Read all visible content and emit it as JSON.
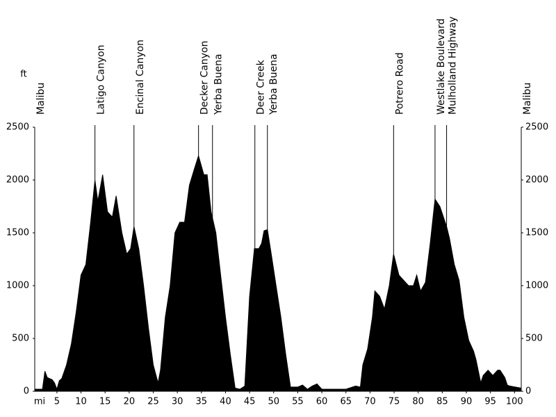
{
  "chart_data": {
    "type": "area",
    "color": "#000000",
    "y_label": "ft",
    "x_label": "mi",
    "xlim": [
      0.4,
      101.4
    ],
    "ylim": [
      0,
      2500
    ],
    "xticks": [
      5,
      10,
      15,
      20,
      25,
      30,
      35,
      40,
      45,
      50,
      55,
      60,
      65,
      70,
      75,
      80,
      85,
      90,
      95,
      100
    ],
    "yticks": [
      0,
      500,
      1000,
      1500,
      2000,
      2500
    ],
    "landmarks": [
      {
        "name": "Malibu",
        "x": 0.4,
        "line": false
      },
      {
        "name": "Latigo Canyon",
        "x": 12.9,
        "line": true
      },
      {
        "name": "Encinal Canyon",
        "x": 21.0,
        "line": true
      },
      {
        "name": "Decker Canyon",
        "x": 34.4,
        "line": true
      },
      {
        "name": "Yerba Buena",
        "x": 37.3,
        "line": true
      },
      {
        "name": "Deer Creek",
        "x": 46.1,
        "line": true
      },
      {
        "name": "Yerba Buena",
        "x": 48.7,
        "line": true
      },
      {
        "name": "Potrero Road",
        "x": 74.9,
        "line": true
      },
      {
        "name": "Westlake Boulevard",
        "x": 83.5,
        "line": true
      },
      {
        "name": "Mulholland Highway",
        "x": 85.9,
        "line": true
      },
      {
        "name": "Malibu",
        "x": 101.4,
        "line": false
      }
    ],
    "x": [
      0.4,
      1,
      2,
      2.5,
      3,
      4,
      4.5,
      5,
      5.5,
      6,
      7,
      8,
      9,
      10,
      11,
      12,
      12.9,
      13.5,
      14.5,
      15.5,
      16.5,
      17.3,
      18.5,
      19.5,
      20.3,
      21,
      22,
      23,
      24,
      25,
      26,
      26.5,
      27.5,
      28.5,
      29.5,
      30.5,
      31.5,
      32.5,
      33.5,
      34.4,
      35.5,
      36.2,
      37,
      38,
      39,
      40,
      41,
      42,
      43,
      44,
      45,
      46,
      46.9,
      47.5,
      48,
      48.7,
      49.5,
      50.5,
      51.5,
      52.5,
      53.5,
      55,
      56,
      57,
      58,
      59,
      60,
      62,
      65,
      67,
      68,
      68.5,
      69.5,
      70.5,
      71,
      72,
      73,
      74,
      74.9,
      76,
      77,
      78,
      79,
      79.7,
      80.5,
      81.5,
      82.5,
      83.5,
      84.5,
      85.9,
      86.5,
      87.5,
      88.5,
      89.5,
      90.5,
      91.5,
      92,
      93,
      93.5,
      94.5,
      95.5,
      96.5,
      97,
      98,
      98.5,
      99,
      101.4
    ],
    "values": [
      20,
      20,
      20,
      190,
      130,
      110,
      80,
      20,
      100,
      120,
      250,
      450,
      750,
      1100,
      1200,
      1600,
      2000,
      1800,
      2050,
      1700,
      1650,
      1850,
      1500,
      1300,
      1350,
      1560,
      1350,
      1000,
      600,
      250,
      80,
      200,
      700,
      1000,
      1500,
      1600,
      1600,
      1950,
      2100,
      2230,
      2050,
      2050,
      1700,
      1500,
      1100,
      700,
      350,
      30,
      20,
      50,
      900,
      1350,
      1350,
      1400,
      1520,
      1530,
      1300,
      1000,
      700,
      350,
      40,
      40,
      60,
      20,
      50,
      70,
      20,
      20,
      20,
      50,
      40,
      250,
      400,
      700,
      950,
      900,
      780,
      1000,
      1300,
      1100,
      1050,
      1000,
      1000,
      1100,
      950,
      1030,
      1400,
      1820,
      1750,
      1560,
      1450,
      1200,
      1050,
      700,
      480,
      380,
      300,
      80,
      150,
      200,
      150,
      200,
      200,
      130,
      60,
      50,
      30
    ]
  }
}
